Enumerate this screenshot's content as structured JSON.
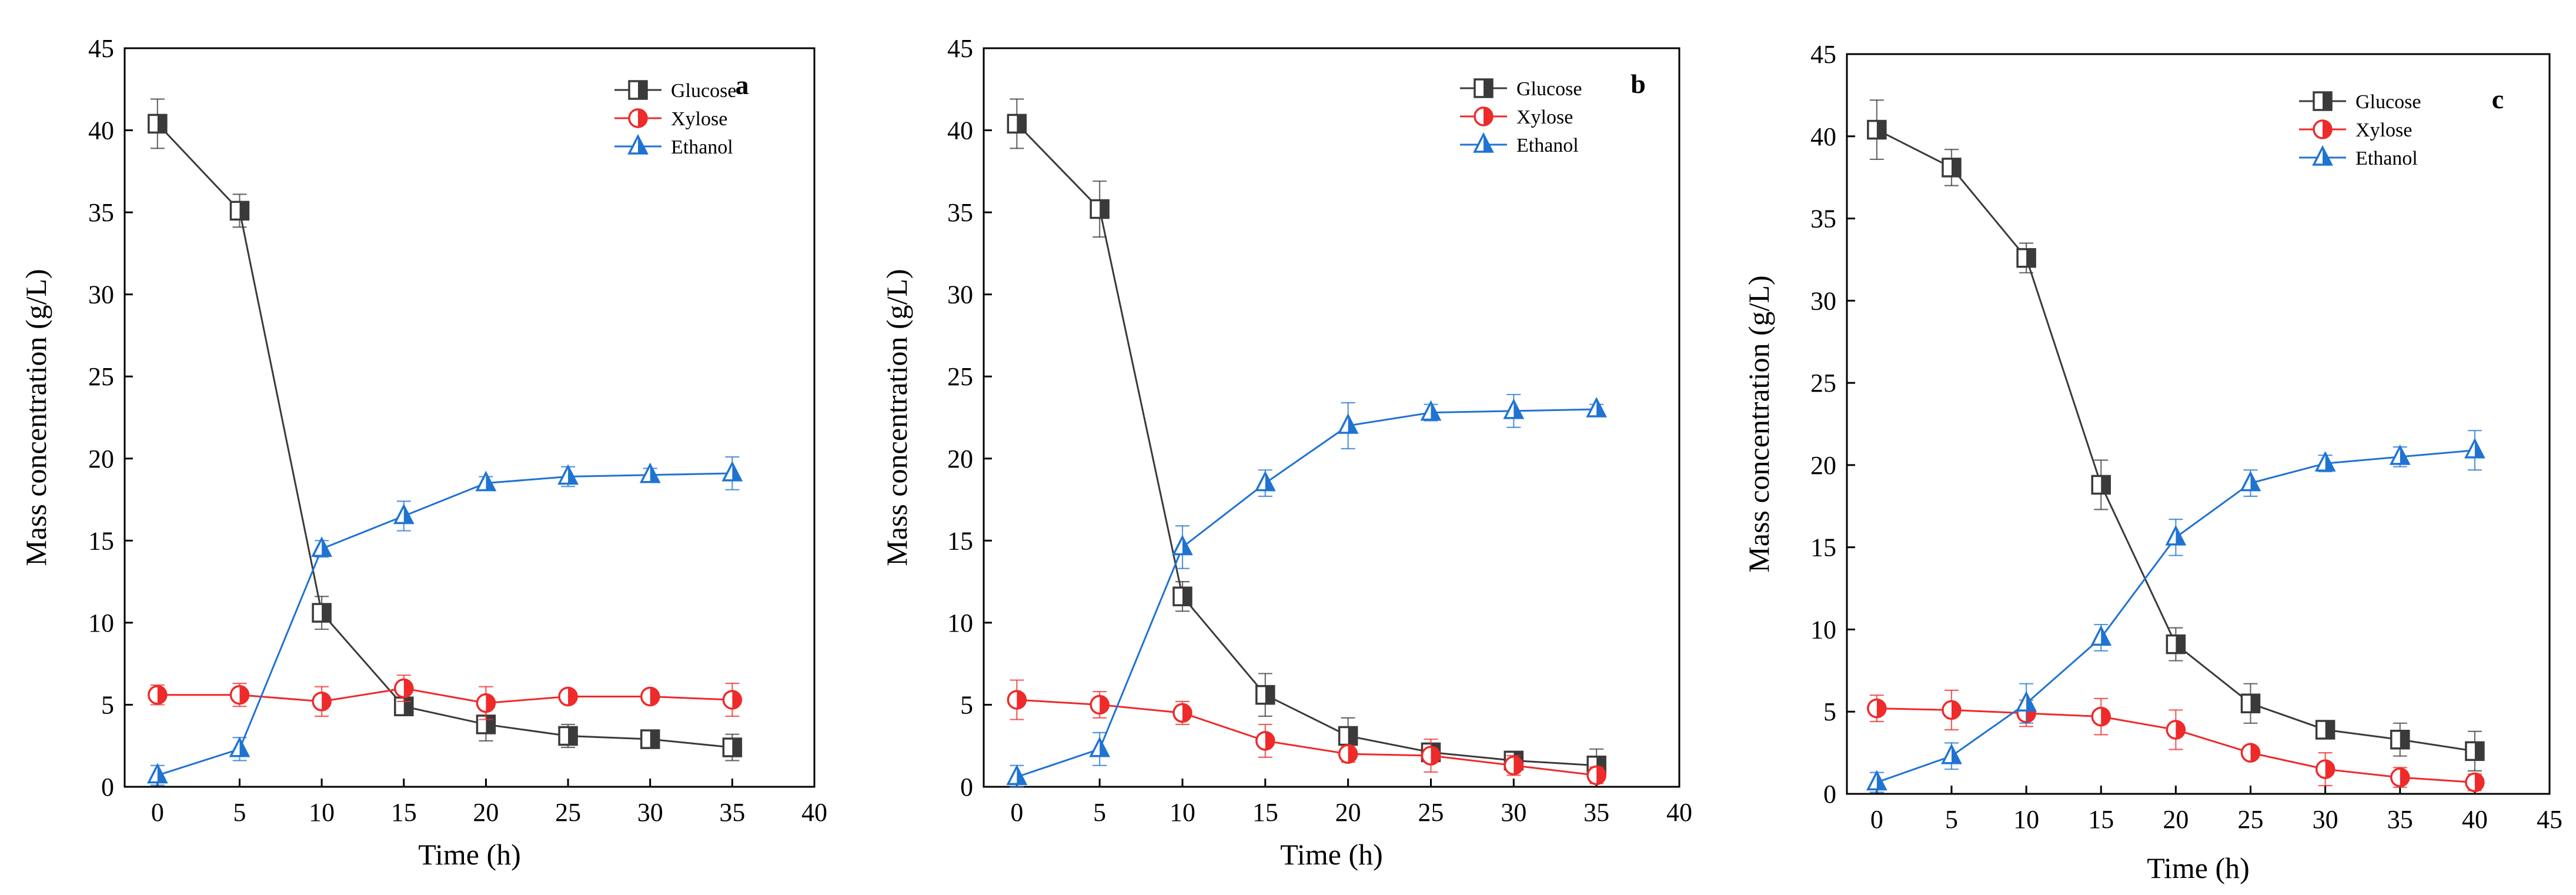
{
  "figure": {
    "panels": [
      "a",
      "b",
      "c"
    ]
  },
  "chart_data": [
    {
      "type": "line",
      "panel_label": "a",
      "title": "",
      "xlabel": "Time (h)",
      "ylabel": "Mass concentration (g/L)",
      "xlim": [
        -2,
        40
      ],
      "ylim": [
        0,
        45
      ],
      "xticks": [
        0,
        5,
        10,
        15,
        20,
        25,
        30,
        35,
        40
      ],
      "yticks": [
        0,
        5,
        10,
        15,
        20,
        25,
        30,
        35,
        40,
        45
      ],
      "legend_position": "top-right",
      "series": [
        {
          "name": "Glucose",
          "color": "#3a3a3a",
          "marker": "square-half",
          "x": [
            0,
            5,
            10,
            15,
            20,
            25,
            30,
            35
          ],
          "y": [
            40.4,
            35.1,
            10.6,
            4.9,
            3.8,
            3.1,
            2.9,
            2.4
          ],
          "err": [
            1.5,
            1.0,
            1.0,
            0.5,
            1.0,
            0.7,
            0.4,
            0.8
          ]
        },
        {
          "name": "Xylose",
          "color": "#ee2a2a",
          "marker": "circle-half",
          "x": [
            0,
            5,
            10,
            15,
            20,
            25,
            30,
            35
          ],
          "y": [
            5.6,
            5.6,
            5.2,
            6.0,
            5.1,
            5.5,
            5.5,
            5.3
          ],
          "err": [
            0.6,
            0.7,
            0.9,
            0.8,
            1.0,
            0.4,
            0.4,
            1.0
          ]
        },
        {
          "name": "Ethanol",
          "color": "#1f73d2",
          "marker": "triangle-half",
          "x": [
            0,
            5,
            10,
            15,
            20,
            25,
            30,
            35
          ],
          "y": [
            0.7,
            2.3,
            14.5,
            16.5,
            18.5,
            18.9,
            19.0,
            19.1
          ],
          "err": [
            0.6,
            0.7,
            0.5,
            0.9,
            0.4,
            0.6,
            0.4,
            1.0
          ]
        }
      ]
    },
    {
      "type": "line",
      "panel_label": "b",
      "title": "",
      "xlabel": "Time (h)",
      "ylabel": "Mass concentration (g/L)",
      "xlim": [
        -2,
        40
      ],
      "ylim": [
        0,
        45
      ],
      "xticks": [
        0,
        5,
        10,
        15,
        20,
        25,
        30,
        35,
        40
      ],
      "yticks": [
        0,
        5,
        10,
        15,
        20,
        25,
        30,
        35,
        40,
        45
      ],
      "legend_position": "top-right",
      "series": [
        {
          "name": "Glucose",
          "color": "#3a3a3a",
          "marker": "square-half",
          "x": [
            0,
            5,
            10,
            15,
            20,
            25,
            30,
            35
          ],
          "y": [
            40.4,
            35.2,
            11.6,
            5.6,
            3.1,
            2.1,
            1.6,
            1.3
          ],
          "err": [
            1.5,
            1.7,
            0.9,
            1.3,
            1.1,
            0.5,
            0.4,
            1.0
          ]
        },
        {
          "name": "Xylose",
          "color": "#ee2a2a",
          "marker": "circle-half",
          "x": [
            0,
            5,
            10,
            15,
            20,
            25,
            30,
            35
          ],
          "y": [
            5.3,
            5.0,
            4.5,
            2.8,
            2.0,
            1.9,
            1.3,
            0.7
          ],
          "err": [
            1.2,
            0.8,
            0.7,
            1.0,
            0.5,
            1.0,
            0.6,
            0.5
          ]
        },
        {
          "name": "Ethanol",
          "color": "#1f73d2",
          "marker": "triangle-half",
          "x": [
            0,
            5,
            10,
            15,
            20,
            25,
            30,
            35
          ],
          "y": [
            0.6,
            2.3,
            14.6,
            18.5,
            22.0,
            22.8,
            22.9,
            23.0
          ],
          "err": [
            0.7,
            1.0,
            1.3,
            0.8,
            1.4,
            0.5,
            1.0,
            0.3
          ]
        }
      ]
    },
    {
      "type": "line",
      "panel_label": "c",
      "title": "",
      "xlabel": "Time (h)",
      "ylabel": "Mass concentration (g/L)",
      "xlim": [
        -2,
        45
      ],
      "ylim": [
        0,
        45
      ],
      "xticks": [
        0,
        5,
        10,
        15,
        20,
        25,
        30,
        35,
        40,
        45
      ],
      "yticks": [
        0,
        5,
        10,
        15,
        20,
        25,
        30,
        35,
        40,
        45
      ],
      "legend_position": "top-right",
      "series": [
        {
          "name": "Glucose",
          "color": "#3a3a3a",
          "marker": "square-half",
          "x": [
            0,
            5,
            10,
            15,
            20,
            25,
            30,
            35,
            40
          ],
          "y": [
            40.4,
            38.1,
            32.6,
            18.8,
            9.1,
            5.5,
            3.9,
            3.3,
            2.6
          ],
          "err": [
            1.8,
            1.1,
            0.9,
            1.5,
            1.0,
            1.2,
            0.4,
            1.0,
            1.2
          ]
        },
        {
          "name": "Xylose",
          "color": "#ee2a2a",
          "marker": "circle-half",
          "x": [
            0,
            5,
            10,
            15,
            20,
            25,
            30,
            35,
            40
          ],
          "y": [
            5.2,
            5.1,
            4.9,
            4.7,
            3.9,
            2.5,
            1.5,
            1.0,
            0.7
          ],
          "err": [
            0.8,
            1.2,
            0.8,
            1.1,
            1.2,
            0.4,
            1.0,
            0.6,
            0.5
          ]
        },
        {
          "name": "Ethanol",
          "color": "#1f73d2",
          "marker": "triangle-half",
          "x": [
            0,
            5,
            10,
            15,
            20,
            25,
            30,
            35,
            40
          ],
          "y": [
            0.7,
            2.3,
            5.5,
            9.5,
            15.6,
            18.9,
            20.1,
            20.5,
            20.9
          ],
          "err": [
            0.6,
            0.8,
            1.2,
            0.8,
            1.1,
            0.8,
            0.5,
            0.6,
            1.2
          ]
        }
      ]
    }
  ]
}
